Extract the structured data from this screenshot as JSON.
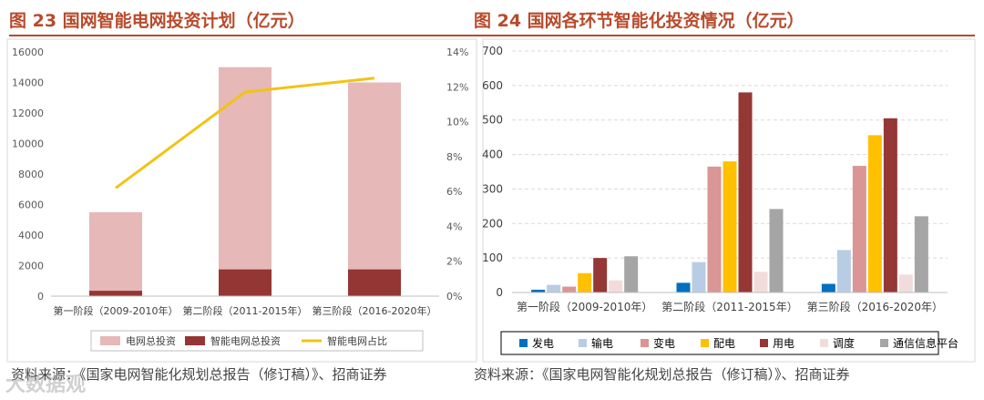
{
  "chart_data": [
    {
      "type": "bar",
      "title": "图 23 国网智能电网投资计划（亿元）",
      "categories": [
        "第一阶段（2009-2010年）",
        "第二阶段（2011-2015年）",
        "第三阶段（2016-2020年）"
      ],
      "stacked": true,
      "series": [
        {
          "name": "电网总投资",
          "values": [
            5500,
            15000,
            14000
          ],
          "color": "#e6b8b7"
        },
        {
          "name": "智能电网总投资",
          "values": [
            350,
            1750,
            1750
          ],
          "color": "#943634"
        },
        {
          "name": "智能电网占比",
          "type": "line",
          "axis": "right",
          "values": [
            6.2,
            11.7,
            12.5
          ],
          "color": "#f2c314"
        }
      ],
      "ylim": [
        0,
        16000
      ],
      "yticks": [
        "0",
        "2000",
        "4000",
        "6000",
        "8000",
        "10000",
        "12000",
        "14000",
        "16000"
      ],
      "y2lim": [
        0,
        14
      ],
      "y2ticks": [
        "0%",
        "2%",
        "4%",
        "6%",
        "8%",
        "10%",
        "12%",
        "14%"
      ],
      "grid": true,
      "legend": "bottom"
    },
    {
      "type": "bar",
      "title": "图 24 国网各环节智能化投资情况（亿元）",
      "categories": [
        "第一阶段（2009-2010年）",
        "第二阶段（2011-2015年）",
        "第三阶段（2016-2020年）"
      ],
      "series": [
        {
          "name": "发电",
          "values": [
            8,
            28,
            25
          ],
          "color": "#0070c0"
        },
        {
          "name": "输电",
          "values": [
            22,
            88,
            123
          ],
          "color": "#b8cce4"
        },
        {
          "name": "变电",
          "values": [
            17,
            365,
            367
          ],
          "color": "#d99694"
        },
        {
          "name": "配电",
          "values": [
            56,
            380,
            456
          ],
          "color": "#ffc000"
        },
        {
          "name": "用电",
          "values": [
            100,
            580,
            505
          ],
          "color": "#953735"
        },
        {
          "name": "调度",
          "values": [
            35,
            60,
            52
          ],
          "color": "#f2dcdb"
        },
        {
          "name": "通信信息平台",
          "values": [
            105,
            242,
            221
          ],
          "color": "#a5a5a5"
        }
      ],
      "ylim": [
        0,
        700
      ],
      "yticks": [
        "0",
        "100",
        "200",
        "300",
        "400",
        "500",
        "600",
        "700"
      ],
      "grid": true,
      "legend": "bottom"
    }
  ],
  "source_left": "资料来源：《国家电网智能化规划总报告（修订稿）》、招商证券",
  "source_right": "资料来源：《国家电网智能化规划总报告（修订稿）》、招商证券",
  "watermark": "大数据观"
}
